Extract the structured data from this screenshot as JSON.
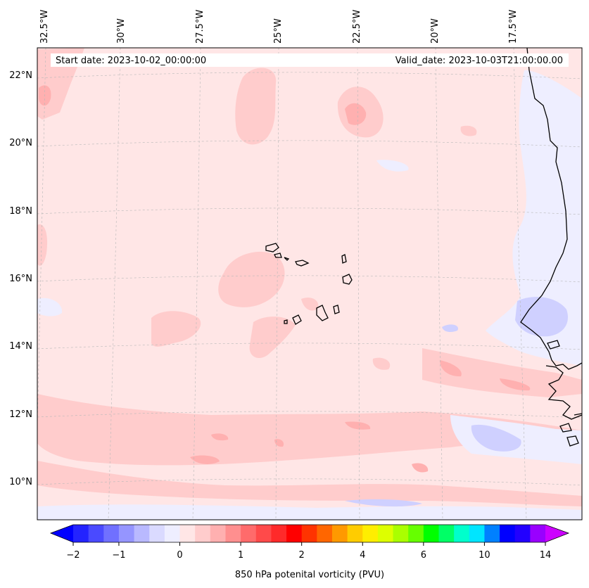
{
  "map": {
    "start_date": "Start date: 2023-10-02_00:00:00",
    "valid_date": "Valid_date: 2023-10-03T21:00:00.00",
    "lon_labels": [
      "32.5°W",
      "30°W",
      "27.5°W",
      "25°W",
      "22.5°W",
      "20°W",
      "17.5°W"
    ],
    "lat_labels": [
      "22°N",
      "20°N",
      "18°N",
      "16°N",
      "14°N",
      "12°N",
      "10°N"
    ],
    "projection": "Lambert conformal",
    "extent": {
      "lon": [
        -33.0,
        -15.5
      ],
      "lat": [
        8.8,
        22.8
      ]
    },
    "gridlines": "dashed grey",
    "background_field_color": "#ffe6e6"
  },
  "colorbar": {
    "label": "850 hPa potenital vorticity (PVU)",
    "tick_labels": [
      "−2",
      "−1",
      "0",
      "1",
      "2",
      "4",
      "6",
      "10",
      "14"
    ],
    "colors": [
      "#0000ff",
      "#2323ff",
      "#4a4aff",
      "#7070ff",
      "#9595ff",
      "#b9b9ff",
      "#dadaff",
      "#eeeeff",
      "#ffe6e6",
      "#ffcccc",
      "#ffb0b0",
      "#ff8f8f",
      "#ff6b6b",
      "#ff4a4a",
      "#ff2a2a",
      "#ff0000",
      "#ff3300",
      "#ff6600",
      "#ff9900",
      "#ffcc00",
      "#ffee00",
      "#ddff00",
      "#aaff00",
      "#66ff00",
      "#00ff00",
      "#00ff66",
      "#00ffcc",
      "#00e5ff",
      "#0080ff",
      "#0000ff",
      "#2200ff",
      "#9900ff",
      "#cc00ff"
    ],
    "extend": "both"
  }
}
